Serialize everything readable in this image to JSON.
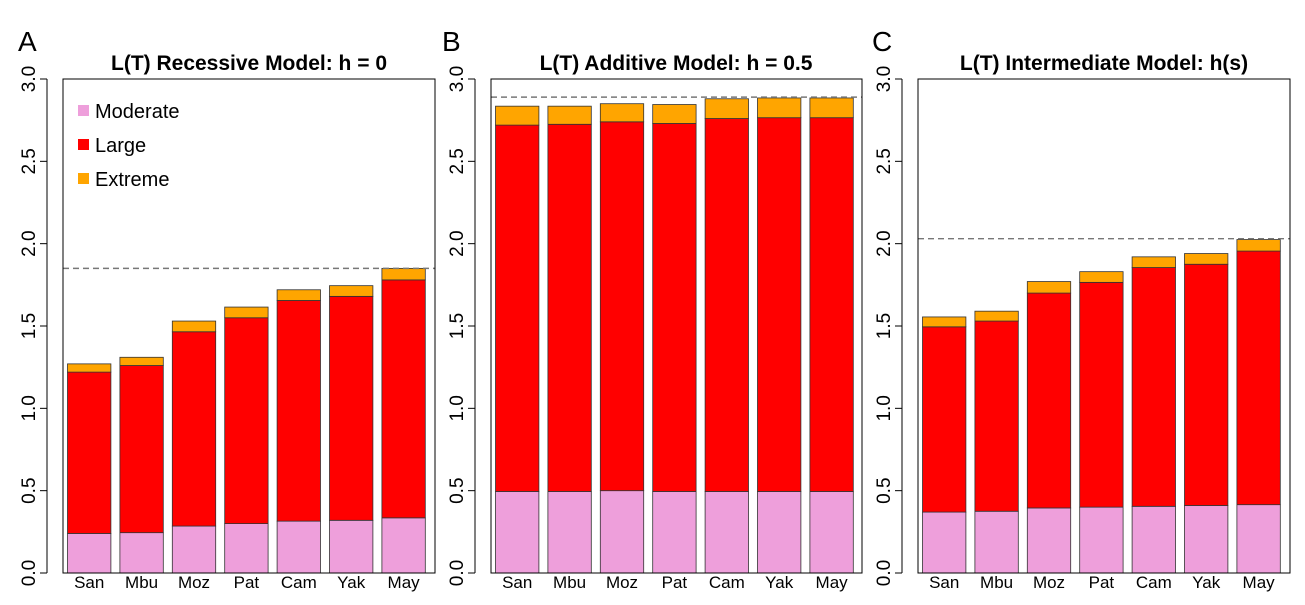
{
  "chart_data": [
    {
      "type": "bar",
      "stacked": true,
      "panel_letter": "A",
      "title": "L(T) Recessive Model: h = 0",
      "categories": [
        "San",
        "Mbu",
        "Moz",
        "Pat",
        "Cam",
        "Yak",
        "May"
      ],
      "series": [
        {
          "name": "Moderate",
          "color": "#EE9FDB",
          "values": [
            0.24,
            0.245,
            0.285,
            0.3,
            0.315,
            0.32,
            0.335
          ]
        },
        {
          "name": "Large",
          "color": "#FF0000",
          "values": [
            0.98,
            1.015,
            1.18,
            1.25,
            1.34,
            1.36,
            1.445
          ]
        },
        {
          "name": "Extreme",
          "color": "#FFA500",
          "values": [
            0.05,
            0.05,
            0.065,
            0.065,
            0.065,
            0.065,
            0.07
          ]
        }
      ],
      "ylim": [
        0,
        3.0
      ],
      "yticks": [
        "0.0",
        "0.5",
        "1.0",
        "1.5",
        "2.0",
        "2.5",
        "3.0"
      ],
      "reference_line": 1.85,
      "legend": {
        "placement": "top-left",
        "entries": [
          "Moderate",
          "Large",
          "Extreme"
        ]
      },
      "grid": false
    },
    {
      "type": "bar",
      "stacked": true,
      "panel_letter": "B",
      "title": "L(T) Additive Model: h = 0.5",
      "categories": [
        "San",
        "Mbu",
        "Moz",
        "Pat",
        "Cam",
        "Yak",
        "May"
      ],
      "series": [
        {
          "name": "Moderate",
          "color": "#EE9FDB",
          "values": [
            0.495,
            0.495,
            0.5,
            0.495,
            0.495,
            0.495,
            0.495
          ]
        },
        {
          "name": "Large",
          "color": "#FF0000",
          "values": [
            2.225,
            2.23,
            2.24,
            2.235,
            2.265,
            2.27,
            2.27
          ]
        },
        {
          "name": "Extreme",
          "color": "#FFA500",
          "values": [
            0.115,
            0.11,
            0.11,
            0.115,
            0.12,
            0.12,
            0.12
          ]
        }
      ],
      "ylim": [
        0,
        3.0
      ],
      "yticks": [
        "0.0",
        "0.5",
        "1.0",
        "1.5",
        "2.0",
        "2.5",
        "3.0"
      ],
      "reference_line": 2.89,
      "grid": false
    },
    {
      "type": "bar",
      "stacked": true,
      "panel_letter": "C",
      "title": "L(T) Intermediate Model: h(s)",
      "categories": [
        "San",
        "Mbu",
        "Moz",
        "Pat",
        "Cam",
        "Yak",
        "May"
      ],
      "series": [
        {
          "name": "Moderate",
          "color": "#EE9FDB",
          "values": [
            0.37,
            0.375,
            0.395,
            0.4,
            0.405,
            0.41,
            0.415
          ]
        },
        {
          "name": "Large",
          "color": "#FF0000",
          "values": [
            1.125,
            1.155,
            1.305,
            1.365,
            1.45,
            1.465,
            1.54
          ]
        },
        {
          "name": "Extreme",
          "color": "#FFA500",
          "values": [
            0.06,
            0.06,
            0.07,
            0.065,
            0.065,
            0.065,
            0.07
          ]
        }
      ],
      "ylim": [
        0,
        3.0
      ],
      "yticks": [
        "0.0",
        "0.5",
        "1.0",
        "1.5",
        "2.0",
        "2.5",
        "3.0"
      ],
      "reference_line": 2.03,
      "grid": false
    }
  ]
}
